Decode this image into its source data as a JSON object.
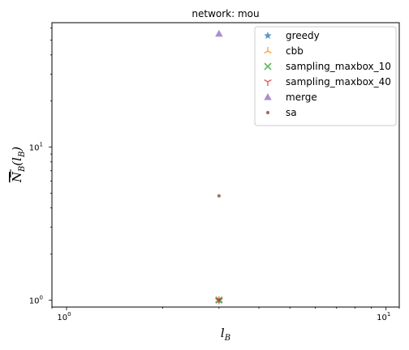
{
  "chart_data": {
    "type": "scatter",
    "title": "network: mou",
    "xlabel": "l_B",
    "ylabel": "N_B(l_B)",
    "xscale": "log",
    "yscale": "log",
    "xlim": [
      0.9,
      11
    ],
    "ylim": [
      0.9,
      65
    ],
    "x_ticks": [
      {
        "value": 1,
        "label": "10",
        "exp": "0"
      },
      {
        "value": 10,
        "label": "10",
        "exp": "1"
      }
    ],
    "y_ticks": [
      {
        "value": 1,
        "label": "10",
        "exp": "0"
      },
      {
        "value": 10,
        "label": "10",
        "exp": "1"
      }
    ],
    "grid": false,
    "legend_position": "top-right",
    "series": [
      {
        "name": "greedy",
        "marker": "star",
        "color": "#1f77b4",
        "points": [
          {
            "x": 3,
            "y": 1
          }
        ]
      },
      {
        "name": "cbb",
        "marker": "tri-up",
        "color": "#ff7f0e",
        "points": [
          {
            "x": 3,
            "y": 1
          }
        ]
      },
      {
        "name": "sampling_maxbox_10",
        "marker": "x",
        "color": "#2ca02c",
        "points": [
          {
            "x": 3,
            "y": 1
          }
        ]
      },
      {
        "name": "sampling_maxbox_40",
        "marker": "tri-down",
        "color": "#d62728",
        "points": [
          {
            "x": 3,
            "y": 1
          }
        ]
      },
      {
        "name": "merge",
        "marker": "triangle",
        "color": "#9467bd",
        "points": [
          {
            "x": 3,
            "y": 55
          }
        ]
      },
      {
        "name": "sa",
        "marker": "dot",
        "color": "#8c564b",
        "points": [
          {
            "x": 3,
            "y": 4.8
          }
        ]
      }
    ]
  }
}
